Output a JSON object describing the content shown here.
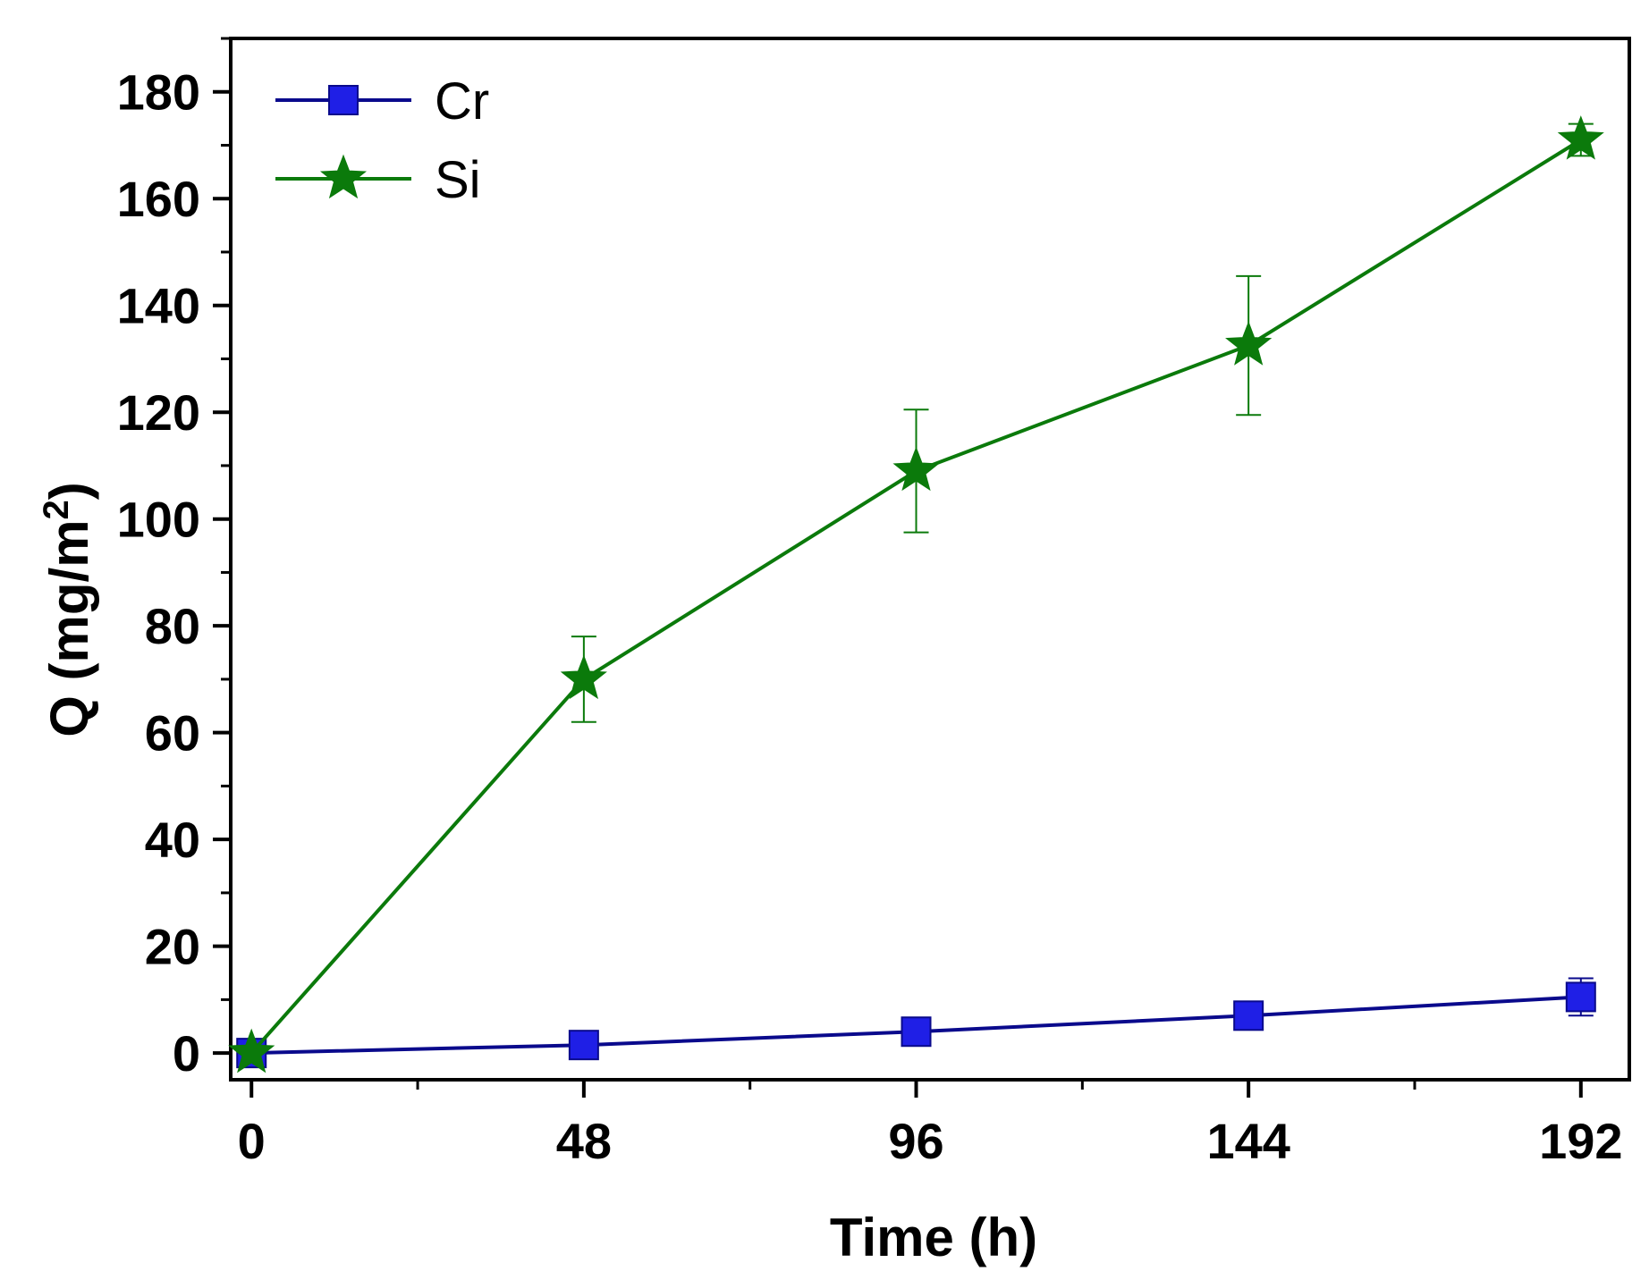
{
  "chart_data": {
    "type": "line",
    "title": "",
    "xlabel": "Time (h)",
    "ylabel_main": "Q (mg/m",
    "ylabel_sup": "2",
    "ylabel_close": ")",
    "x": [
      0,
      48,
      96,
      144,
      192
    ],
    "xlim": [
      -3,
      199
    ],
    "ylim": [
      -5,
      190
    ],
    "xticks": [
      0,
      48,
      96,
      144,
      192
    ],
    "yticks": [
      0,
      20,
      40,
      60,
      80,
      100,
      120,
      140,
      160,
      180
    ],
    "ytick_minor": [
      10,
      30,
      50,
      70,
      90,
      110,
      130,
      150,
      170,
      190
    ],
    "legend_position": "top-left",
    "series": [
      {
        "name": "Cr",
        "color": "#1f1fe6",
        "line_color": "#0a0a8c",
        "marker": "square",
        "values": [
          0,
          1.5,
          4,
          7,
          10.5
        ],
        "errors": [
          0,
          0.5,
          0.8,
          1.0,
          3.5
        ]
      },
      {
        "name": "Si",
        "color": "#0b7a0b",
        "line_color": "#0b7a0b",
        "marker": "star",
        "values": [
          0,
          70,
          109,
          132.5,
          171
        ],
        "errors": [
          0,
          8,
          11.5,
          13,
          3
        ]
      }
    ]
  }
}
